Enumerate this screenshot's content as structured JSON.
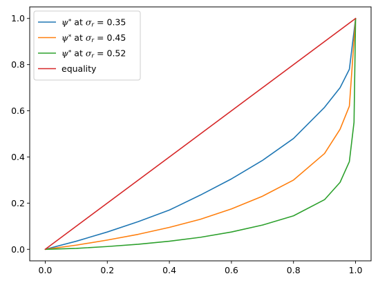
{
  "chart_data": {
    "type": "line",
    "title": "",
    "xlabel": "",
    "ylabel": "",
    "xlim": [
      -0.05,
      1.05
    ],
    "ylim": [
      -0.05,
      1.05
    ],
    "xticks": [
      0.0,
      0.2,
      0.4,
      0.6,
      0.8,
      1.0
    ],
    "xtick_labels": [
      "0.0",
      "0.2",
      "0.4",
      "0.6",
      "0.8",
      "1.0"
    ],
    "yticks": [
      0.0,
      0.2,
      0.4,
      0.6,
      0.8,
      1.0
    ],
    "ytick_labels": [
      "0.0",
      "0.2",
      "0.4",
      "0.6",
      "0.8",
      "1.0"
    ],
    "grid": false,
    "legend_position": "top-left",
    "series": [
      {
        "name": "ψ* at σr = 0.35",
        "legend_main": "ψ",
        "legend_sup": "*",
        "legend_at": " at ",
        "legend_sym": "σ",
        "legend_sub": "r",
        "legend_val": " = 0.35",
        "color": "#1f77b4",
        "x": [
          0,
          0.1,
          0.2,
          0.3,
          0.4,
          0.5,
          0.6,
          0.7,
          0.8,
          0.9,
          0.95,
          0.98,
          1.0
        ],
        "y": [
          0,
          0.035,
          0.075,
          0.12,
          0.17,
          0.235,
          0.305,
          0.385,
          0.48,
          0.615,
          0.7,
          0.78,
          1.0
        ]
      },
      {
        "name": "ψ* at σr = 0.45",
        "legend_main": "ψ",
        "legend_sup": "*",
        "legend_at": " at ",
        "legend_sym": "σ",
        "legend_sub": "r",
        "legend_val": " = 0.45",
        "color": "#ff7f0e",
        "x": [
          0,
          0.1,
          0.2,
          0.3,
          0.4,
          0.5,
          0.6,
          0.7,
          0.8,
          0.9,
          0.95,
          0.98,
          1.0
        ],
        "y": [
          0,
          0.018,
          0.04,
          0.065,
          0.095,
          0.13,
          0.175,
          0.23,
          0.3,
          0.415,
          0.52,
          0.62,
          1.0
        ]
      },
      {
        "name": "ψ* at σr = 0.52",
        "legend_main": "ψ",
        "legend_sup": "*",
        "legend_at": " at ",
        "legend_sym": "σ",
        "legend_sub": "r",
        "legend_val": " = 0.52",
        "color": "#2ca02c",
        "x": [
          0,
          0.1,
          0.2,
          0.3,
          0.4,
          0.5,
          0.6,
          0.7,
          0.8,
          0.9,
          0.95,
          0.98,
          0.995,
          1.0
        ],
        "y": [
          0,
          0.004,
          0.012,
          0.022,
          0.035,
          0.052,
          0.075,
          0.105,
          0.145,
          0.215,
          0.29,
          0.38,
          0.55,
          1.0
        ]
      },
      {
        "name": "equality",
        "legend_main": "equality",
        "color": "#d62728",
        "x": [
          0,
          1
        ],
        "y": [
          0,
          1
        ]
      }
    ]
  }
}
